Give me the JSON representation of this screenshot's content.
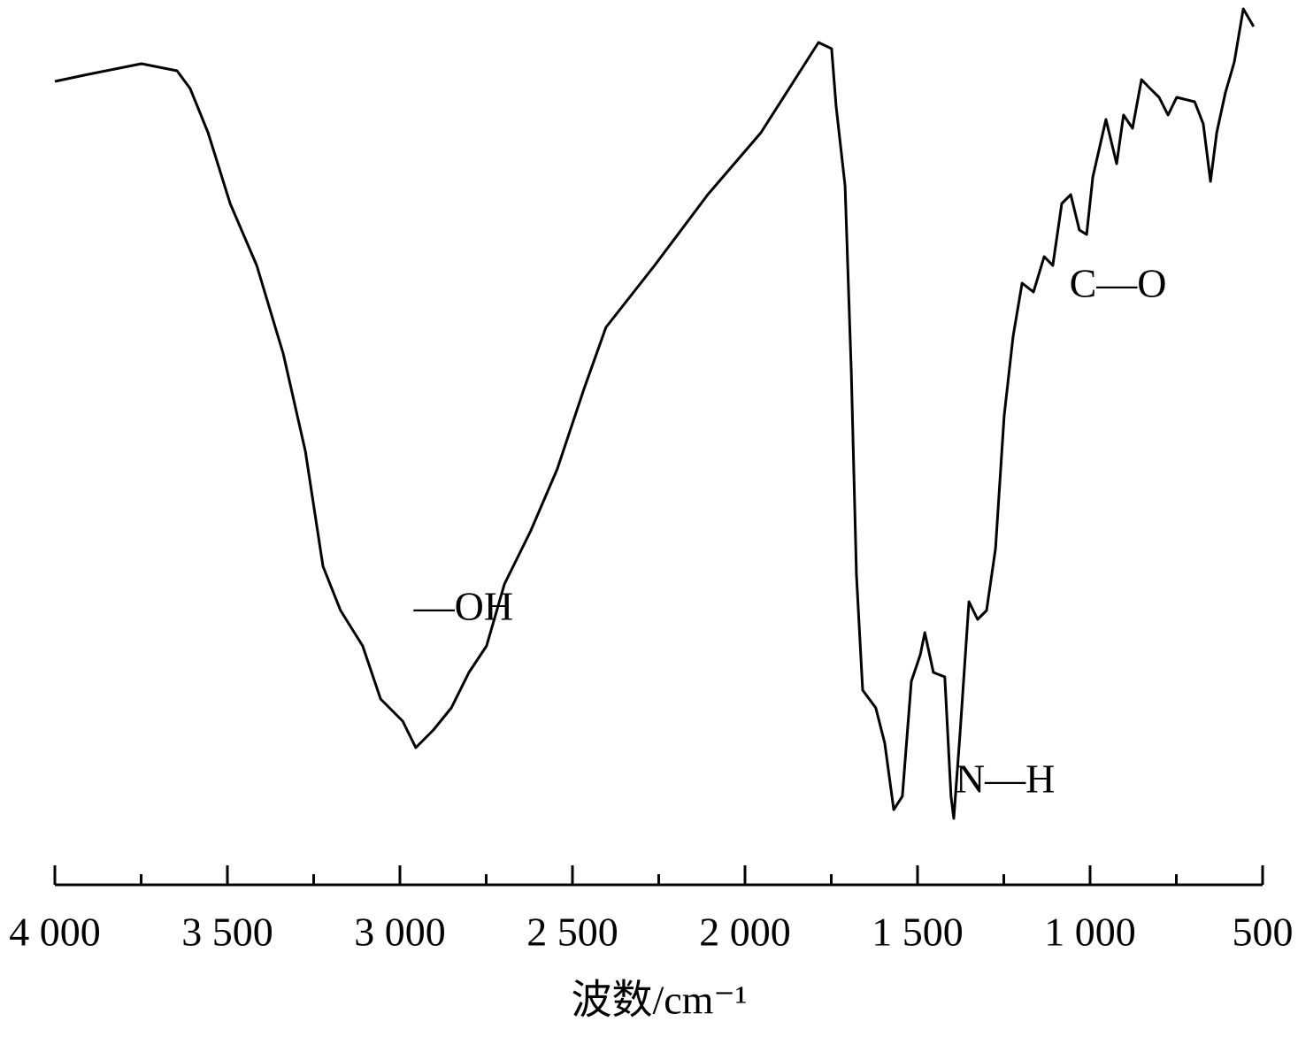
{
  "chart_data": {
    "type": "line",
    "xlabel": "波数/cm⁻¹",
    "x": [
      4000,
      3903,
      3826,
      3749,
      3646,
      3608,
      3556,
      3492,
      3415,
      3338,
      3274,
      3223,
      3172,
      3108,
      3056,
      2992,
      2954,
      2903,
      2851,
      2800,
      2749,
      2697,
      2621,
      2544,
      2467,
      2403,
      2262,
      2108,
      1954,
      1787,
      1749,
      1736,
      1710,
      1692,
      1677,
      1659,
      1621,
      1595,
      1569,
      1544,
      1518,
      1492,
      1479,
      1454,
      1421,
      1403,
      1395,
      1377,
      1351,
      1326,
      1300,
      1274,
      1249,
      1223,
      1197,
      1164,
      1133,
      1108,
      1082,
      1056,
      1031,
      1010,
      992,
      954,
      923,
      903,
      877,
      851,
      826,
      800,
      774,
      749,
      697,
      672,
      651,
      633,
      608,
      582,
      556,
      526
    ],
    "series": [
      {
        "color": "#000000",
        "values": [
          90.8,
          91.6,
          92.2,
          92.8,
          92,
          90,
          85,
          77,
          70,
          60,
          49,
          36,
          31,
          27,
          21,
          18.5,
          15.5,
          17.5,
          20,
          24,
          27,
          34,
          40,
          47,
          56,
          63,
          70,
          78,
          85,
          95.2,
          94.5,
          88,
          79,
          58,
          35,
          22,
          20,
          16,
          8.5,
          10,
          23,
          26,
          28.5,
          24,
          23.5,
          10,
          7.5,
          17,
          32,
          30,
          31,
          38,
          53,
          62,
          68,
          67,
          71,
          70,
          77,
          78,
          74,
          73.5,
          80,
          86.5,
          81.5,
          87,
          85.5,
          91,
          90,
          89,
          87,
          89,
          88.5,
          86,
          79.5,
          85,
          89.5,
          93,
          99,
          97
        ]
      }
    ],
    "xlim": [
      4000,
      500
    ],
    "ylim": [
      0,
      100
    ],
    "xticks": [
      {
        "value": 4000,
        "label": "4 000"
      },
      {
        "value": 3500,
        "label": "3 500"
      },
      {
        "value": 3000,
        "label": "3 000"
      },
      {
        "value": 2500,
        "label": "2 500"
      },
      {
        "value": 2000,
        "label": "2 000"
      },
      {
        "value": 1500,
        "label": "1 500"
      },
      {
        "value": 1000,
        "label": "1 000"
      },
      500
    ],
    "xminorticks": [
      3750,
      3250,
      2750,
      2250,
      1750,
      1250,
      750
    ],
    "annotations": [
      {
        "text": "—OH",
        "x": 2960,
        "y": 31
      },
      {
        "text": "N—H",
        "x": 1390,
        "y": 11.5
      },
      {
        "text": "C—O",
        "x": 1060,
        "y": 67.5
      }
    ]
  }
}
